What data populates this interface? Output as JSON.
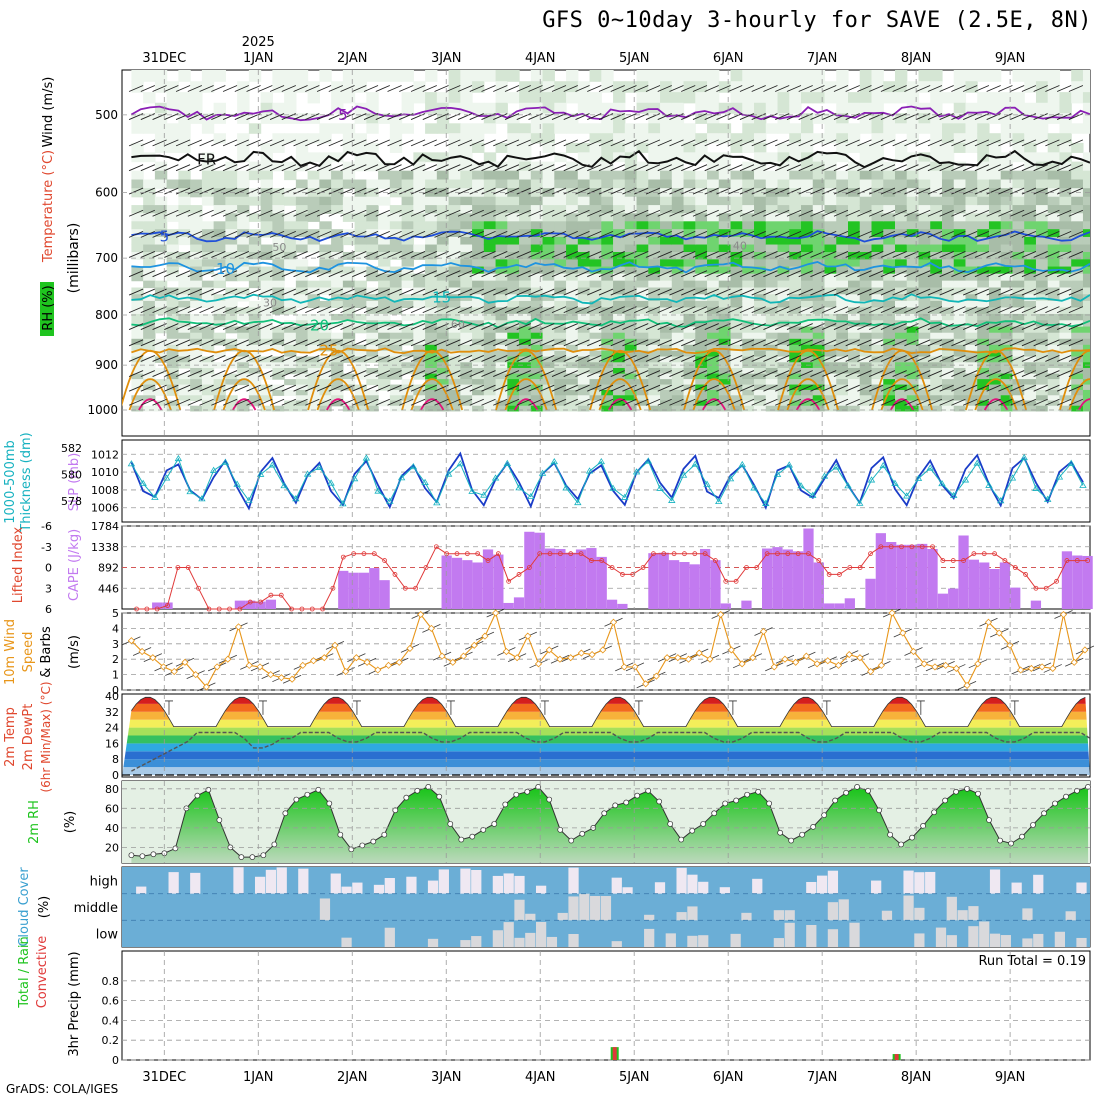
{
  "title": "GFS 0~10day 3-hourly for SAVE (2.5E, 8N)",
  "credit": "GrADS: COLA/IGES",
  "colors": {
    "purple": "#8a1fb5",
    "blue": "#1f4fd9",
    "lightblue": "#1e93e0",
    "teal": "#10b6b8",
    "green": "#12c07a",
    "orange": "#e08e0b",
    "magenta": "#e0127a",
    "rhgreen": "#1fc41f",
    "cape": "#c27af0",
    "li": "#e03a3a",
    "wind": "#e8961a",
    "cloudbg": "#6baed6",
    "cloud": "#e8e8ee",
    "slp": "#1a3cc8",
    "thick": "#17b2c0",
    "grid": "#9a9a9a"
  },
  "time_axis": {
    "top_labels": [
      "31DEC",
      "1JAN",
      "2JAN",
      "3JAN",
      "4JAN",
      "5JAN",
      "6JAN",
      "7JAN",
      "8JAN",
      "9JAN"
    ],
    "year_label": "2025",
    "bottom_labels": [
      "31DEC",
      "1JAN",
      "2JAN",
      "3JAN",
      "4JAN",
      "5JAN",
      "6JAN",
      "7JAN",
      "8JAN",
      "9JAN"
    ],
    "day_offsets": [
      -0.25,
      0.75,
      1.75,
      2.75,
      3.75,
      4.75,
      5.75,
      6.75,
      7.75,
      8.75
    ],
    "range_days": [
      -0.7,
      9.6
    ]
  },
  "chart_data": [
    {
      "panel": "upper-air",
      "type": "heatmap",
      "ylabel_parts": [
        "Wind (m/s)",
        "Temperature (°C)",
        "RH (%)",
        "(millibars)"
      ],
      "y_ticks": [
        500,
        600,
        700,
        800,
        900,
        1000
      ],
      "ylim": [
        450,
        1000
      ],
      "y_scale": "log-pressure",
      "rh_levels": [
        30,
        50,
        60,
        70,
        80,
        90
      ],
      "contour_labels": [
        {
          "text": "5",
          "kind": "purple"
        },
        {
          "text": "FR",
          "kind": "freezing"
        },
        {
          "text": "5",
          "kind": "blue"
        },
        {
          "text": "10",
          "kind": "lightblue"
        },
        {
          "text": "15",
          "kind": "teal"
        },
        {
          "text": "20",
          "kind": "green"
        },
        {
          "text": "25",
          "kind": "orange"
        },
        {
          "text": "30",
          "kind": "rh"
        },
        {
          "text": "50",
          "kind": "rh"
        },
        {
          "text": "60",
          "kind": "rh"
        },
        {
          "text": "40",
          "kind": "rh"
        }
      ],
      "isotherms_mb": {
        "-5": 498,
        "0": 555,
        "5": 665,
        "10": 715,
        "15": 770,
        "20": 815,
        "25": 870
      }
    },
    {
      "panel": "slp-thickness",
      "type": "line",
      "ylabel_parts": [
        "1000-500mb",
        "Thickness (dm)",
        "SLP (mb)"
      ],
      "left_ticks": [
        578,
        580,
        582
      ],
      "left_range": [
        576.4,
        582.6
      ],
      "right_ticks": [
        1006,
        1008,
        1010,
        1012
      ],
      "right_range": [
        1004.4,
        1013.6
      ],
      "series": [
        {
          "name": "SLP",
          "axis": "right",
          "mean": 1009,
          "amp": 2.8
        },
        {
          "name": "Thickness",
          "axis": "left",
          "mean": 579.5,
          "amp": 1.6
        }
      ]
    },
    {
      "panel": "instability",
      "type": "bar",
      "ylabel_parts": [
        "Lifted Index",
        "CAPE (J/kg)"
      ],
      "left_ticks": [
        "-6",
        "-3",
        "0",
        "3",
        "6"
      ],
      "right_ticks": [
        446,
        892,
        1338,
        1784
      ],
      "cape_max": 1784,
      "li_range": [
        -6,
        6
      ],
      "cape_values": [
        0,
        0,
        140,
        140,
        0,
        0,
        0,
        0,
        0,
        0,
        180,
        180,
        160,
        200,
        0,
        0,
        0,
        0,
        0,
        0,
        820,
        780,
        780,
        880,
        620,
        0,
        0,
        0,
        0,
        0,
        1150,
        1100,
        1050,
        1000,
        1280,
        1170,
        130,
        250,
        1660,
        1640,
        1300,
        1290,
        1210,
        1280,
        1310,
        1120,
        200,
        110,
        0,
        0,
        1200,
        1210,
        1050,
        1010,
        960,
        1290,
        1050,
        120,
        0,
        180,
        0,
        1300,
        1330,
        1280,
        1240,
        1730,
        1000,
        120,
        120,
        230,
        0,
        650,
        1630,
        1440,
        1380,
        1380,
        1400,
        1290,
        330,
        440,
        1580,
        1060,
        1000,
        860,
        1000,
        460,
        0,
        180,
        0,
        0,
        1240,
        1150,
        1140
      ],
      "li_values": [
        6,
        6,
        6,
        5.5,
        0,
        0,
        3,
        6,
        6,
        6,
        6,
        5,
        5,
        4,
        4,
        6,
        6,
        6,
        6,
        3,
        -1.5,
        -2,
        -2,
        -2,
        -1,
        1,
        3,
        3,
        0,
        -3,
        -2,
        -2,
        -2,
        -2,
        -1,
        -2,
        2,
        1,
        0,
        -2,
        -2,
        -2,
        -2,
        -2,
        -1,
        -1,
        0,
        1,
        1,
        0,
        -2,
        -2,
        -2,
        -2,
        -2,
        -2,
        -1,
        2,
        2,
        0,
        0,
        -2,
        -2,
        -2,
        -2,
        -2,
        -1,
        1,
        1,
        0,
        0,
        -2,
        -3,
        -3,
        -3,
        -3,
        -3,
        -3,
        -1,
        -1,
        -1,
        -2,
        -2,
        -2,
        -1,
        0,
        1,
        3,
        3,
        2,
        -1,
        -1,
        -1
      ]
    },
    {
      "panel": "surface-wind",
      "type": "line",
      "ylabel_parts": [
        "10m Wind",
        "Speed",
        "& Barbs",
        "(m/s)"
      ],
      "y_ticks": [
        0,
        1,
        2,
        3,
        4,
        5
      ],
      "ylim": [
        0,
        5
      ],
      "values": [
        3.2,
        2.5,
        2.1,
        1.5,
        1.2,
        1.8,
        1.0,
        0.2,
        1.5,
        2.0,
        4.1,
        1.6,
        1.5,
        1.0,
        0.8,
        0.7,
        1.6,
        1.9,
        2.1,
        2.9,
        1.2,
        2.1,
        1.8,
        1.3,
        1.6,
        1.8,
        2.7,
        4.9,
        4.0,
        2.2,
        1.8,
        2.2,
        2.9,
        3.5,
        5.0,
        2.5,
        2.1,
        3.5,
        1.7,
        2.6,
        2.0,
        2.1,
        2.4,
        2.3,
        2.6,
        4.4,
        1.5,
        1.5,
        0.4,
        0.9,
        2.1,
        2.1,
        2.0,
        2.4,
        2.0,
        4.9,
        2.6,
        1.7,
        2.1,
        3.8,
        1.5,
        2.0,
        1.8,
        2.2,
        1.7,
        1.9,
        1.6,
        2.3,
        2.1,
        1.2,
        1.6,
        5.0,
        3.7,
        2.5,
        1.7,
        1.5,
        1.6,
        1.4,
        0.3,
        1.7,
        4.4,
        3.7,
        2.9,
        1.3,
        1.4,
        1.5,
        1.4,
        4.9,
        1.8,
        2.6
      ]
    },
    {
      "panel": "temperature",
      "type": "area",
      "ylabel_parts": [
        "2m Temp",
        "2m DewPt",
        "(6hr Min/Max) (°C)"
      ],
      "y_ticks": [
        0,
        8,
        16,
        24,
        32,
        40
      ],
      "ylim": [
        -1,
        41
      ],
      "temp_min": 24.5,
      "temp_max": 39.5,
      "dewpt_min": 2,
      "dewpt_max": 21.5
    },
    {
      "panel": "surface-rh",
      "type": "area",
      "ylabel_parts": [
        "2m RH",
        "(%)"
      ],
      "y_ticks": [
        20,
        40,
        60,
        80
      ],
      "ylim": [
        4,
        88
      ],
      "values": [
        12,
        11,
        13,
        14,
        19,
        60,
        73,
        79,
        48,
        20,
        10,
        10,
        12,
        23,
        55,
        69,
        74,
        79,
        65,
        33,
        18,
        22,
        26,
        33,
        58,
        71,
        78,
        82,
        72,
        44,
        28,
        31,
        38,
        44,
        64,
        74,
        77,
        82,
        69,
        38,
        27,
        34,
        40,
        55,
        63,
        66,
        73,
        78,
        67,
        44,
        28,
        37,
        44,
        55,
        65,
        68,
        74,
        77,
        65,
        35,
        27,
        33,
        41,
        53,
        68,
        76,
        82,
        78,
        58,
        33,
        23,
        30,
        42,
        56,
        68,
        77,
        80,
        75,
        48,
        27,
        24,
        31,
        43,
        55,
        65,
        72,
        78,
        82
      ]
    },
    {
      "panel": "cloud-cover",
      "type": "bar",
      "ylabel_parts": [
        "Cloud Cover",
        "(%)"
      ],
      "row_labels": [
        "high",
        "middle",
        "low"
      ]
    },
    {
      "panel": "precipitation",
      "type": "bar",
      "ylabel_parts": [
        "Total / Rain",
        "Convective",
        "3hr Precip (mm)"
      ],
      "y_ticks": [
        "0",
        "0.2",
        "0.4",
        "0.6",
        "0.8"
      ],
      "ylim": [
        0,
        1.0
      ],
      "run_total_text": "Run Total = 0.19",
      "events": [
        {
          "day": 4.5,
          "total": 0.13,
          "convective": 0.13
        },
        {
          "day": 7.5,
          "total": 0.06,
          "convective": 0.06
        }
      ]
    }
  ]
}
